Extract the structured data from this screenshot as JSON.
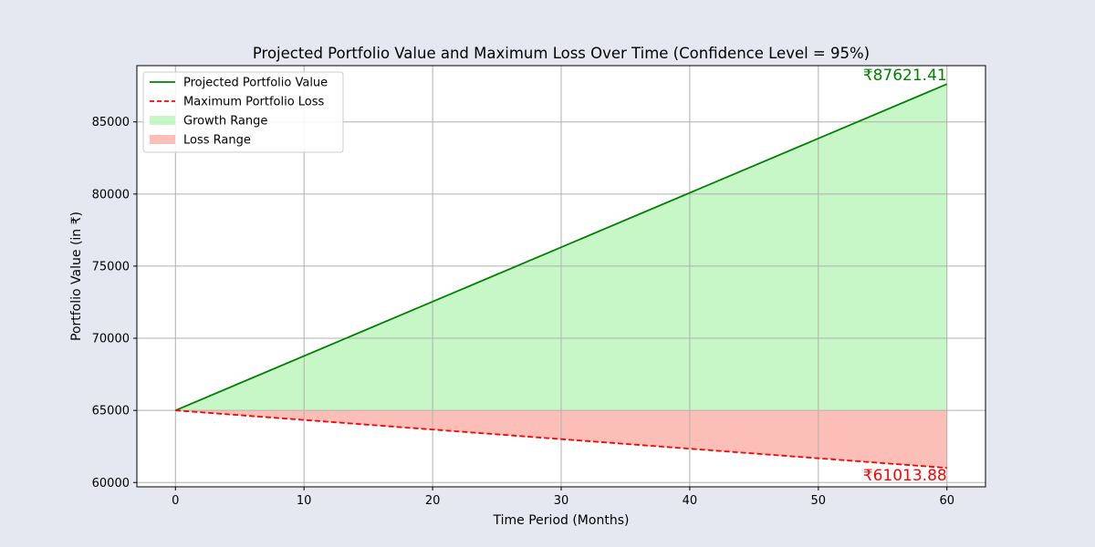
{
  "chart_data": {
    "type": "line",
    "title": "Projected Portfolio Value and Maximum Loss Over Time (Confidence Level = 95%)",
    "xlabel": "Time Period (Months)",
    "ylabel": "Portfolio Value (in ₹)",
    "xlim": [
      -3,
      63
    ],
    "ylim": [
      59700,
      88900
    ],
    "xticks": [
      0,
      10,
      20,
      30,
      40,
      50,
      60
    ],
    "yticks": [
      60000,
      65000,
      70000,
      75000,
      80000,
      85000
    ],
    "grid": true,
    "legend_position": "top-left",
    "baseline": 65000,
    "series": [
      {
        "name": "Projected Portfolio Value",
        "style": "solid",
        "color": "#008000",
        "x": [
          0,
          60
        ],
        "y": [
          65000,
          87621.41
        ]
      },
      {
        "name": "Maximum Portfolio Loss",
        "style": "dashed",
        "color": "#ff0000",
        "x": [
          0,
          60
        ],
        "y": [
          65000,
          61013.88
        ]
      }
    ],
    "fills": [
      {
        "name": "Growth Range",
        "color": "#90ee90",
        "between": [
          "baseline",
          "Projected Portfolio Value"
        ]
      },
      {
        "name": "Loss Range",
        "color": "#fa8072",
        "between": [
          "Maximum Portfolio Loss",
          "baseline"
        ]
      }
    ],
    "annotations": [
      {
        "text": "₹87621.41",
        "x": 60,
        "y": 87621.41,
        "color": "#008000"
      },
      {
        "text": "₹61013.88",
        "x": 60,
        "y": 61013.88,
        "color": "#ff0000"
      }
    ]
  }
}
